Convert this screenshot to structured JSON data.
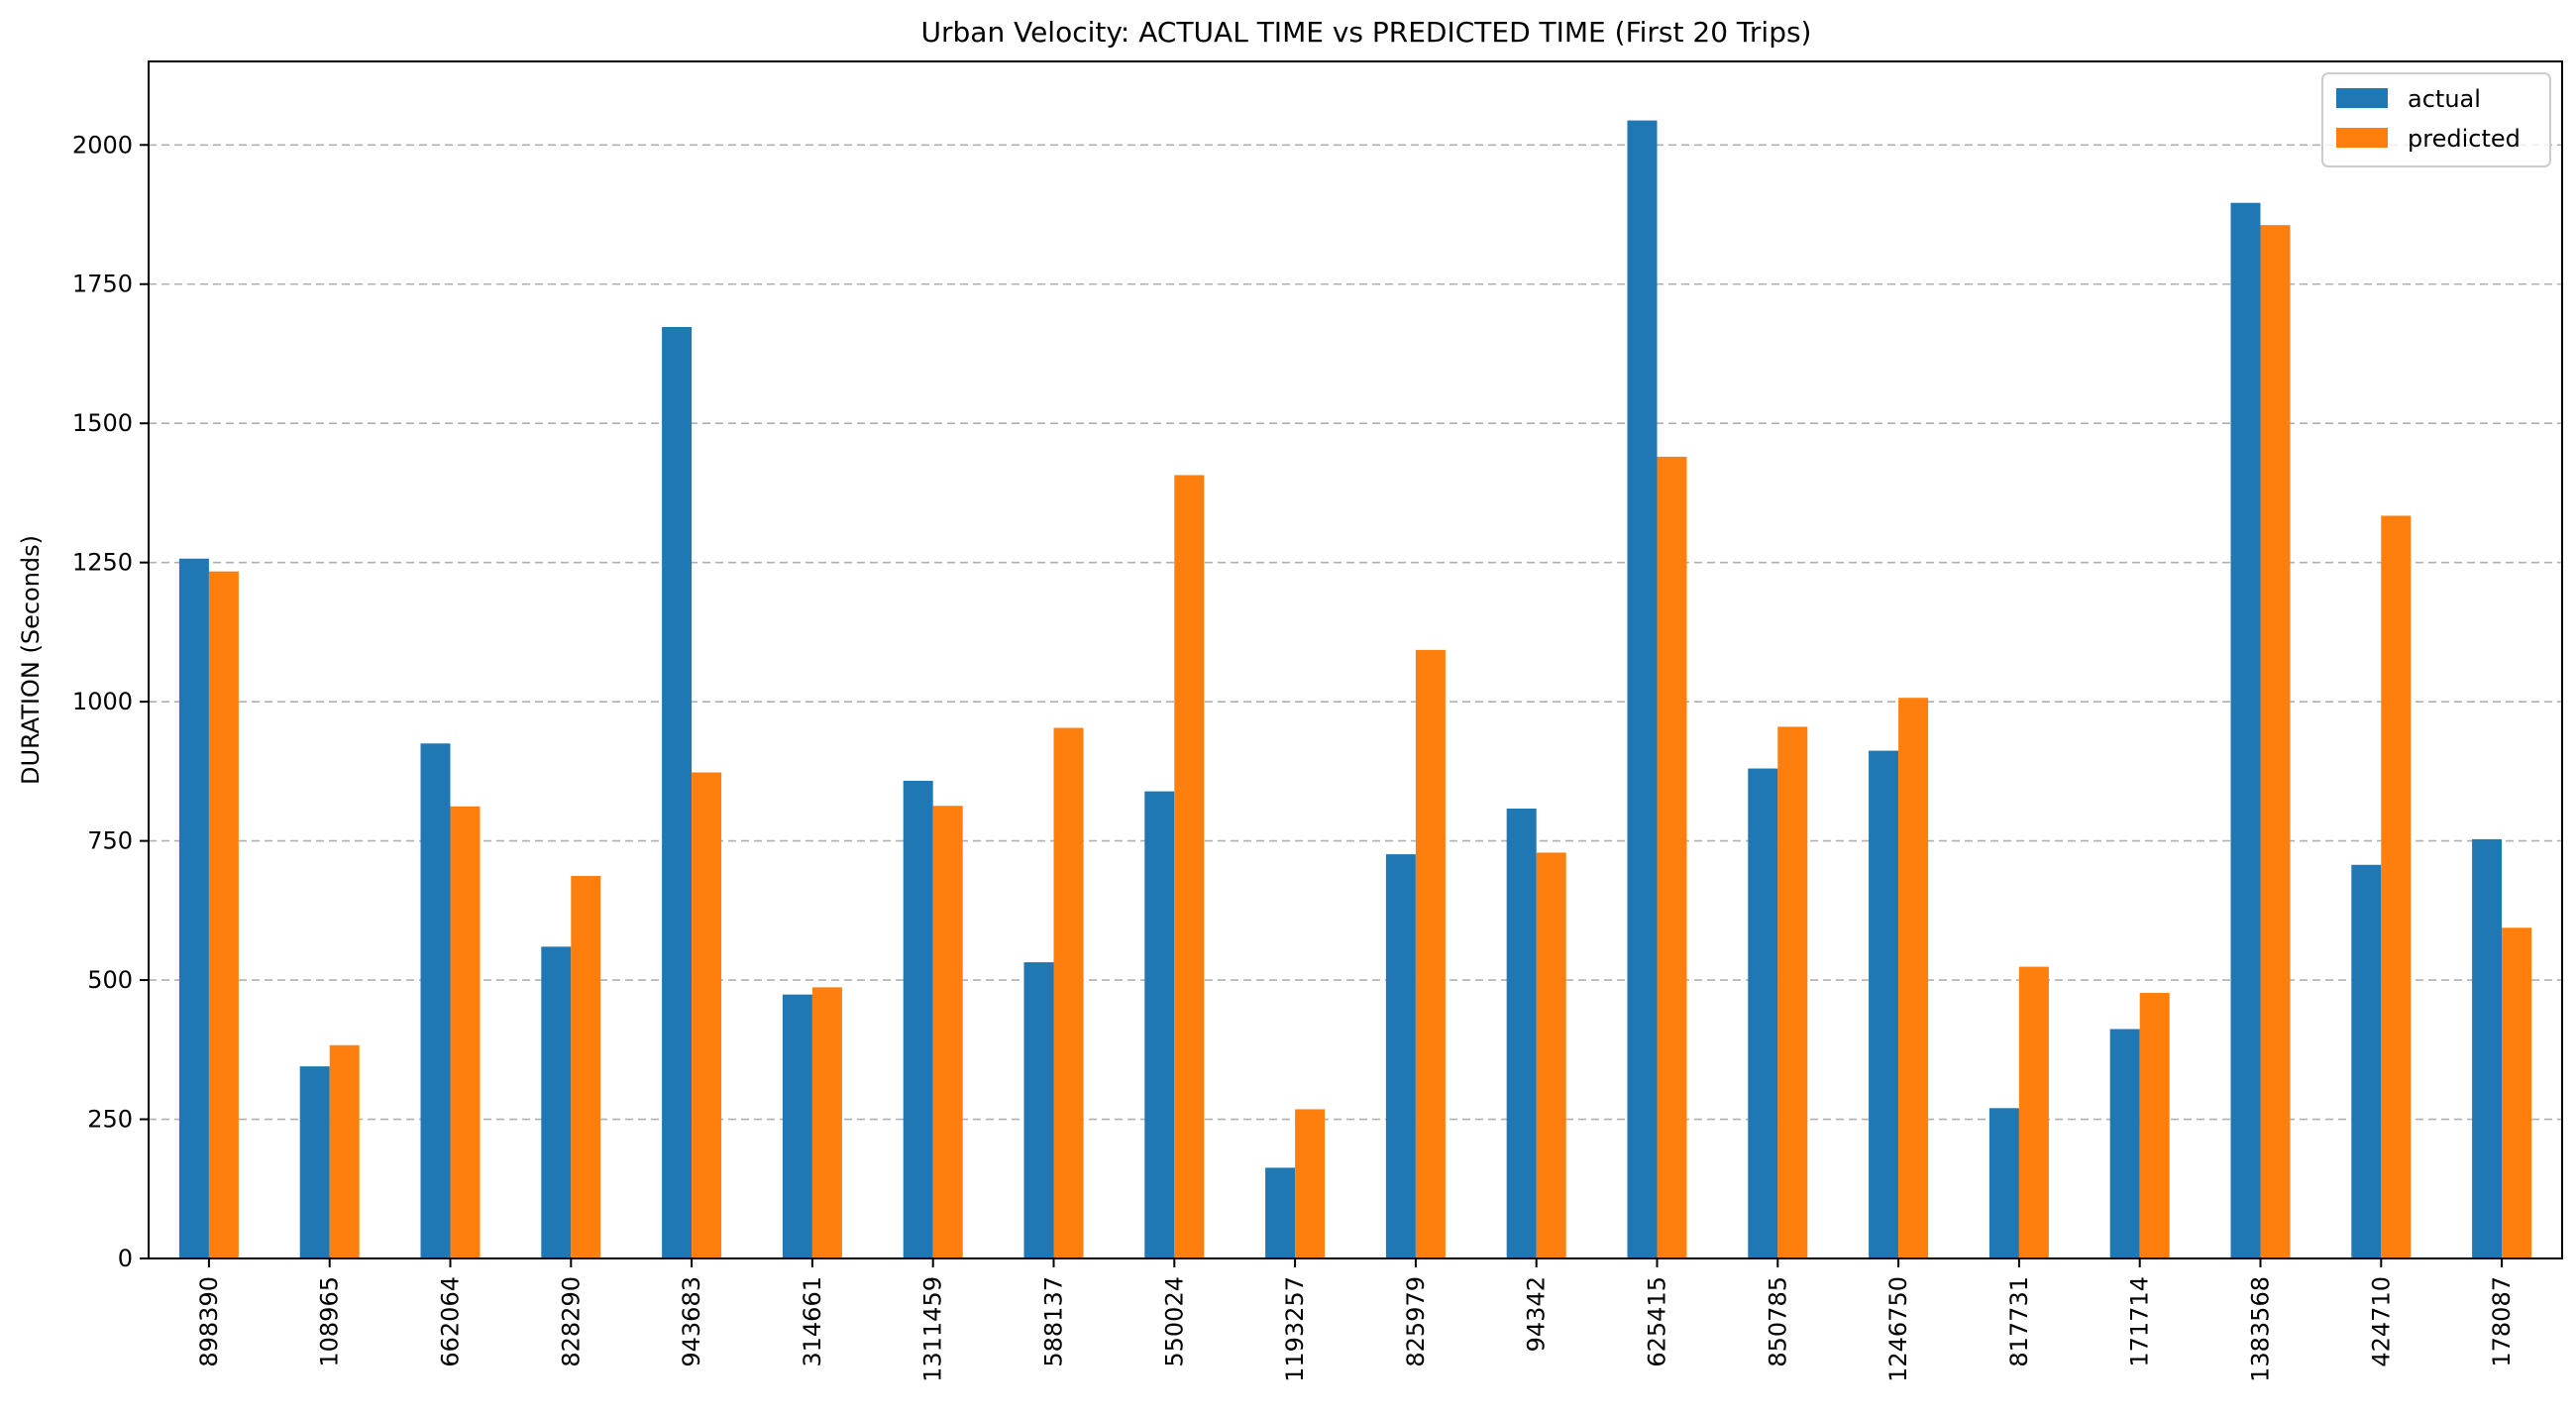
{
  "chart_data": {
    "type": "bar",
    "title": "Urban Velocity: ACTUAL TIME vs PREDICTED TIME (First 20 Trips)",
    "xlabel": "",
    "ylabel": "DURATION (Seconds)",
    "ylim": [
      0,
      2150
    ],
    "yticks": [
      0,
      250,
      500,
      750,
      1000,
      1250,
      1500,
      1750,
      2000
    ],
    "grid": "y-dashed",
    "legend_position": "top-right",
    "categories": [
      "898390",
      "108965",
      "662064",
      "828290",
      "943683",
      "314661",
      "1311459",
      "588137",
      "550024",
      "1193257",
      "825979",
      "94342",
      "625415",
      "850785",
      "1246750",
      "817731",
      "171714",
      "1383568",
      "424710",
      "178087"
    ],
    "series": [
      {
        "name": "actual",
        "color": "#1f77b4",
        "values": [
          1257,
          345,
          925,
          560,
          1673,
          474,
          858,
          532,
          839,
          163,
          726,
          808,
          2044,
          880,
          912,
          270,
          412,
          1896,
          707,
          753
        ]
      },
      {
        "name": "predicted",
        "color": "#ff7f0e",
        "values": [
          1234,
          383,
          812,
          687,
          873,
          487,
          813,
          953,
          1407,
          268,
          1093,
          729,
          1440,
          955,
          1007,
          524,
          477,
          1856,
          1334,
          594
        ]
      }
    ]
  }
}
